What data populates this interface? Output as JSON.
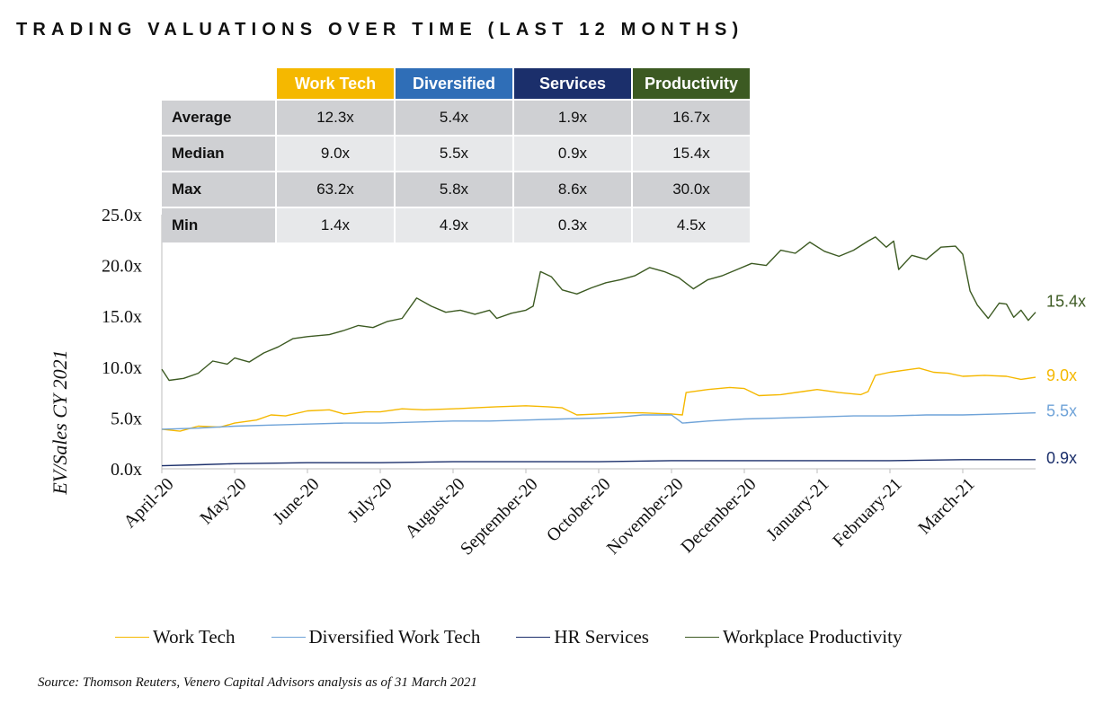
{
  "title": "TRADING VALUATIONS OVER TIME (LAST 12 MONTHS)",
  "source": "Source: Thomson Reuters, Venero Capital Advisors analysis as of 31 March 2021",
  "stats_table": {
    "headers": [
      "Work Tech",
      "Diversified",
      "Services",
      "Productivity"
    ],
    "header_colors": [
      "#f5b800",
      "#2f6eb7",
      "#1b2f6b",
      "#3c5a22"
    ],
    "rows": [
      {
        "label": "Average",
        "values": [
          "12.3x",
          "5.4x",
          "1.9x",
          "16.7x"
        ]
      },
      {
        "label": "Median",
        "values": [
          "9.0x",
          "5.5x",
          "0.9x",
          "15.4x"
        ]
      },
      {
        "label": "Max",
        "values": [
          "63.2x",
          "5.8x",
          "8.6x",
          "30.0x"
        ]
      },
      {
        "label": "Min",
        "values": [
          "1.4x",
          "4.9x",
          "0.3x",
          "4.5x"
        ]
      }
    ]
  },
  "chart_data": {
    "type": "line",
    "title": "TRADING VALUATIONS OVER TIME (LAST 12 MONTHS)",
    "ylabel": "EV/Sales CY 2021",
    "xlabel": "",
    "ylim": [
      0,
      25
    ],
    "y_ticks": [
      "0.0x",
      "5.0x",
      "10.0x",
      "15.0x",
      "20.0x",
      "25.0x"
    ],
    "x_ticks": [
      "April-20",
      "May-20",
      "June-20",
      "July-20",
      "August-20",
      "September-20",
      "October-20",
      "November-20",
      "December-20",
      "January-21",
      "February-21",
      "March-21"
    ],
    "x_unit": "month index (0 = April-20, 12 = 31 March 2021)",
    "grid": false,
    "legend_position": "bottom",
    "series": [
      {
        "name": "Work Tech",
        "color": "#f5b800",
        "end_label": "9.0x",
        "points": [
          [
            0,
            3.9
          ],
          [
            0.25,
            3.7
          ],
          [
            0.5,
            4.2
          ],
          [
            0.8,
            4.1
          ],
          [
            1,
            4.5
          ],
          [
            1.3,
            4.8
          ],
          [
            1.5,
            5.3
          ],
          [
            1.7,
            5.2
          ],
          [
            2,
            5.7
          ],
          [
            2.3,
            5.8
          ],
          [
            2.5,
            5.4
          ],
          [
            2.8,
            5.6
          ],
          [
            3,
            5.6
          ],
          [
            3.3,
            5.9
          ],
          [
            3.6,
            5.8
          ],
          [
            4,
            5.9
          ],
          [
            4.3,
            6.0
          ],
          [
            4.6,
            6.1
          ],
          [
            5,
            6.2
          ],
          [
            5.3,
            6.1
          ],
          [
            5.5,
            6.0
          ],
          [
            5.7,
            5.3
          ],
          [
            6,
            5.4
          ],
          [
            6.3,
            5.5
          ],
          [
            6.6,
            5.5
          ],
          [
            7,
            5.4
          ],
          [
            7.15,
            5.3
          ],
          [
            7.2,
            7.5
          ],
          [
            7.5,
            7.8
          ],
          [
            7.8,
            8.0
          ],
          [
            8,
            7.9
          ],
          [
            8.2,
            7.2
          ],
          [
            8.5,
            7.3
          ],
          [
            8.8,
            7.6
          ],
          [
            9,
            7.8
          ],
          [
            9.3,
            7.5
          ],
          [
            9.6,
            7.3
          ],
          [
            9.7,
            7.6
          ],
          [
            9.8,
            9.2
          ],
          [
            10,
            9.5
          ],
          [
            10.2,
            9.7
          ],
          [
            10.4,
            9.9
          ],
          [
            10.6,
            9.5
          ],
          [
            10.8,
            9.4
          ],
          [
            11,
            9.1
          ],
          [
            11.3,
            9.2
          ],
          [
            11.6,
            9.1
          ],
          [
            11.8,
            8.8
          ],
          [
            12,
            9.0
          ]
        ]
      },
      {
        "name": "Diversified Work Tech",
        "color": "#6fa3d8",
        "end_label": "5.5x",
        "points": [
          [
            0,
            3.9
          ],
          [
            0.5,
            4.0
          ],
          [
            1,
            4.2
          ],
          [
            1.5,
            4.3
          ],
          [
            2,
            4.4
          ],
          [
            2.5,
            4.5
          ],
          [
            3,
            4.5
          ],
          [
            3.5,
            4.6
          ],
          [
            4,
            4.7
          ],
          [
            4.5,
            4.7
          ],
          [
            5,
            4.8
          ],
          [
            5.5,
            4.9
          ],
          [
            6,
            5.0
          ],
          [
            6.3,
            5.1
          ],
          [
            6.6,
            5.3
          ],
          [
            7,
            5.3
          ],
          [
            7.15,
            4.5
          ],
          [
            7.5,
            4.7
          ],
          [
            8,
            4.9
          ],
          [
            8.5,
            5.0
          ],
          [
            9,
            5.1
          ],
          [
            9.5,
            5.2
          ],
          [
            10,
            5.2
          ],
          [
            10.5,
            5.3
          ],
          [
            11,
            5.3
          ],
          [
            11.5,
            5.4
          ],
          [
            12,
            5.5
          ]
        ]
      },
      {
        "name": "HR Services",
        "color": "#1b2f6b",
        "end_label": "0.9x",
        "points": [
          [
            0,
            0.3
          ],
          [
            0.5,
            0.4
          ],
          [
            1,
            0.5
          ],
          [
            2,
            0.6
          ],
          [
            3,
            0.6
          ],
          [
            4,
            0.7
          ],
          [
            5,
            0.7
          ],
          [
            6,
            0.7
          ],
          [
            7,
            0.8
          ],
          [
            8,
            0.8
          ],
          [
            9,
            0.8
          ],
          [
            10,
            0.8
          ],
          [
            11,
            0.9
          ],
          [
            12,
            0.9
          ]
        ]
      },
      {
        "name": "Workplace Productivity",
        "color": "#3c5a22",
        "end_label": "15.4x",
        "points": [
          [
            0,
            9.8
          ],
          [
            0.1,
            8.7
          ],
          [
            0.3,
            8.9
          ],
          [
            0.5,
            9.4
          ],
          [
            0.7,
            10.6
          ],
          [
            0.9,
            10.3
          ],
          [
            1,
            10.9
          ],
          [
            1.2,
            10.5
          ],
          [
            1.4,
            11.4
          ],
          [
            1.6,
            12.0
          ],
          [
            1.8,
            12.8
          ],
          [
            2,
            13.0
          ],
          [
            2.3,
            13.2
          ],
          [
            2.5,
            13.6
          ],
          [
            2.7,
            14.1
          ],
          [
            2.9,
            13.9
          ],
          [
            3.1,
            14.5
          ],
          [
            3.3,
            14.8
          ],
          [
            3.5,
            16.8
          ],
          [
            3.7,
            16.0
          ],
          [
            3.9,
            15.4
          ],
          [
            4.1,
            15.6
          ],
          [
            4.3,
            15.2
          ],
          [
            4.5,
            15.6
          ],
          [
            4.6,
            14.8
          ],
          [
            4.8,
            15.3
          ],
          [
            5.0,
            15.6
          ],
          [
            5.1,
            16.0
          ],
          [
            5.2,
            19.4
          ],
          [
            5.35,
            18.9
          ],
          [
            5.5,
            17.6
          ],
          [
            5.7,
            17.2
          ],
          [
            5.9,
            17.8
          ],
          [
            6.1,
            18.3
          ],
          [
            6.3,
            18.6
          ],
          [
            6.5,
            19.0
          ],
          [
            6.7,
            19.8
          ],
          [
            6.9,
            19.4
          ],
          [
            7.1,
            18.8
          ],
          [
            7.3,
            17.7
          ],
          [
            7.5,
            18.6
          ],
          [
            7.7,
            19.0
          ],
          [
            7.9,
            19.6
          ],
          [
            8.1,
            20.2
          ],
          [
            8.3,
            20.0
          ],
          [
            8.5,
            21.5
          ],
          [
            8.7,
            21.2
          ],
          [
            8.9,
            22.3
          ],
          [
            9.1,
            21.4
          ],
          [
            9.3,
            20.9
          ],
          [
            9.5,
            21.5
          ],
          [
            9.7,
            22.4
          ],
          [
            9.8,
            22.8
          ],
          [
            9.95,
            21.8
          ],
          [
            10.05,
            22.4
          ],
          [
            10.12,
            19.6
          ],
          [
            10.3,
            21.0
          ],
          [
            10.5,
            20.6
          ],
          [
            10.7,
            21.8
          ],
          [
            10.9,
            21.9
          ],
          [
            11.0,
            21.1
          ],
          [
            11.1,
            17.5
          ],
          [
            11.2,
            16.1
          ],
          [
            11.35,
            14.8
          ],
          [
            11.5,
            16.3
          ],
          [
            11.6,
            16.2
          ],
          [
            11.7,
            14.9
          ],
          [
            11.8,
            15.6
          ],
          [
            11.9,
            14.6
          ],
          [
            12.0,
            15.4
          ]
        ]
      }
    ]
  }
}
